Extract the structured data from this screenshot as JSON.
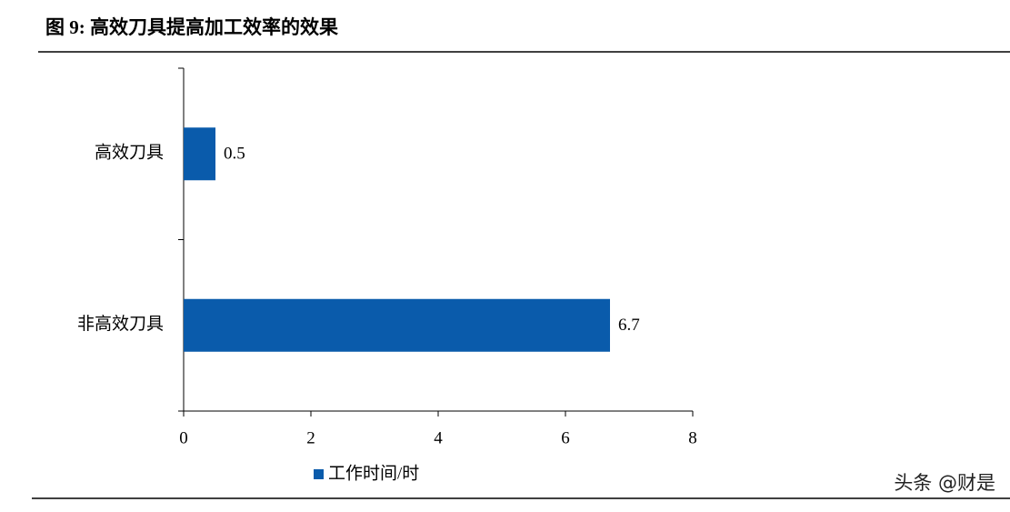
{
  "chart_data": {
    "type": "hbar",
    "title": "图 9: 高效刀具提高加工效率的效果",
    "categories": [
      "高效刀具",
      "非高效刀具"
    ],
    "series": [
      {
        "name": "工作时间/时",
        "color": "#0a5bab",
        "values": [
          0.5,
          6.7
        ]
      }
    ],
    "xlim": [
      0,
      8
    ],
    "xticks": [
      0,
      2,
      4,
      6,
      8
    ],
    "legend": "bottom",
    "watermark": "头条 @财是"
  }
}
